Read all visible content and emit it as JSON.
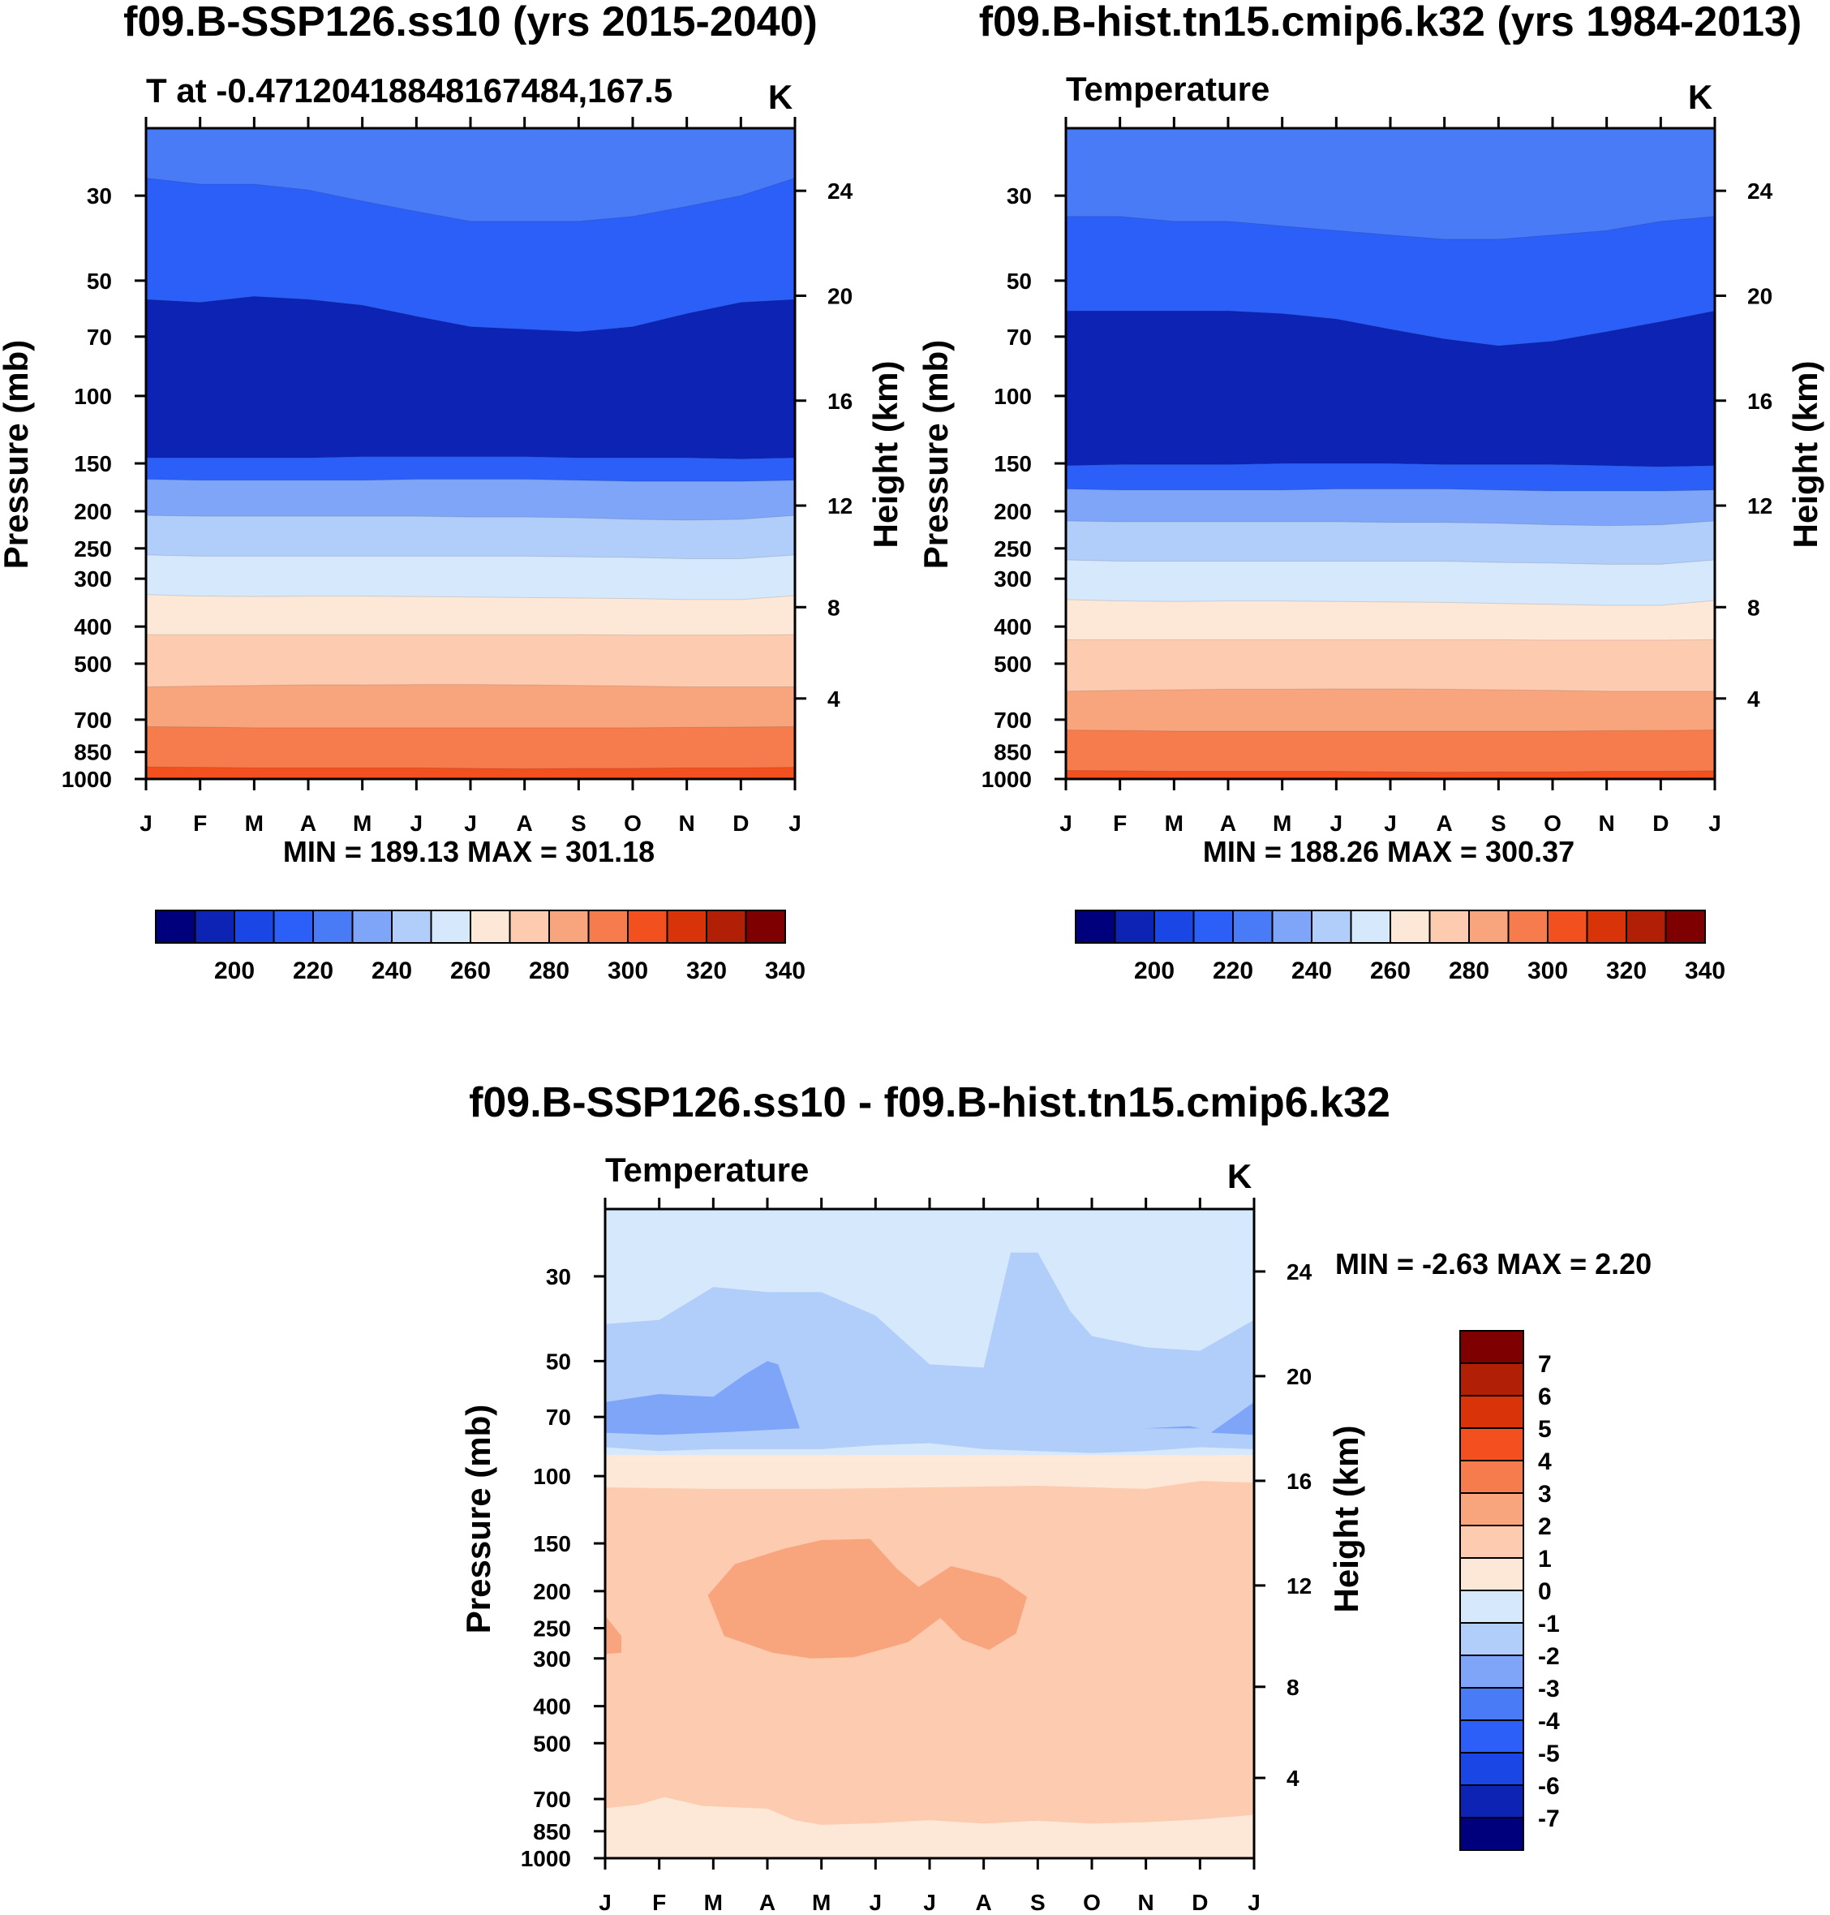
{
  "chart_data": [
    {
      "id": "top-left",
      "type": "contour",
      "title": "f09.B-SSP126.ss10 (yrs 2015-2040)",
      "subtitle": "T at -0.47120418848167484,167.5",
      "units": "K",
      "ylabel": "Pressure (mb)",
      "ylabel_right": "Height (km)",
      "months": [
        "J",
        "F",
        "M",
        "A",
        "M",
        "J",
        "J",
        "A",
        "S",
        "O",
        "N",
        "D",
        "J"
      ],
      "pressure_ticks": [
        30,
        50,
        70,
        100,
        150,
        200,
        250,
        300,
        400,
        500,
        700,
        850,
        1000
      ],
      "height_ticks": [
        4,
        8,
        12,
        16,
        20,
        24
      ],
      "stats": "MIN = 189.13 MAX = 301.18",
      "min": 189.13,
      "max": 301.18,
      "boundaries": [
        {
          "level": 200,
          "pressures": [
            145,
            145,
            145,
            145,
            144,
            144,
            144,
            144,
            145,
            145,
            145,
            146,
            145
          ]
        },
        {
          "level": 210,
          "pressures": [
            56,
            57,
            55,
            56,
            58,
            62,
            66,
            67,
            68,
            66,
            61,
            57,
            56
          ]
        },
        {
          "level": 220,
          "pressures": [
            27,
            28,
            28,
            29,
            31,
            33,
            35,
            35,
            35,
            34,
            32,
            30,
            27
          ]
        },
        {
          "level": 230,
          "pressures": [
            165,
            166,
            166,
            166,
            166,
            165,
            165,
            165,
            166,
            167,
            167,
            167,
            166
          ]
        },
        {
          "level": 240,
          "pressures": [
            205,
            206,
            206,
            206,
            206,
            206,
            207,
            207,
            208,
            210,
            211,
            210,
            205
          ]
        },
        {
          "level": 250,
          "pressures": [
            260,
            262,
            262,
            262,
            262,
            262,
            262,
            262,
            263,
            264,
            266,
            266,
            260
          ]
        },
        {
          "level": 260,
          "pressures": [
            330,
            333,
            334,
            333,
            333,
            334,
            335,
            336,
            337,
            338,
            340,
            340,
            332
          ]
        },
        {
          "level": 270,
          "pressures": [
            420,
            420,
            420,
            420,
            420,
            420,
            420,
            420,
            420,
            421,
            421,
            421,
            420
          ]
        },
        {
          "level": 280,
          "pressures": [
            575,
            572,
            570,
            568,
            568,
            567,
            567,
            568,
            570,
            572,
            575,
            575,
            575
          ]
        },
        {
          "level": 290,
          "pressures": [
            730,
            732,
            735,
            735,
            735,
            735,
            735,
            735,
            735,
            735,
            733,
            732,
            730
          ]
        },
        {
          "level": 300,
          "pressures": [
            930,
            932,
            935,
            935,
            935,
            935,
            938,
            940,
            938,
            938,
            935,
            935,
            932
          ]
        }
      ]
    },
    {
      "id": "top-right",
      "type": "contour",
      "title": "f09.B-hist.tn15.cmip6.k32 (yrs 1984-2013)",
      "subtitle": "Temperature",
      "units": "K",
      "ylabel": "Pressure (mb)",
      "ylabel_right": "Height (km)",
      "months": [
        "J",
        "F",
        "M",
        "A",
        "M",
        "J",
        "J",
        "A",
        "S",
        "O",
        "N",
        "D",
        "J"
      ],
      "pressure_ticks": [
        30,
        50,
        70,
        100,
        150,
        200,
        250,
        300,
        400,
        500,
        700,
        850,
        1000
      ],
      "height_ticks": [
        4,
        8,
        12,
        16,
        20,
        24
      ],
      "stats": "MIN = 188.26 MAX = 300.37",
      "min": 188.26,
      "max": 300.37,
      "boundaries": [
        {
          "level": 200,
          "pressures": [
            152,
            151,
            151,
            151,
            150,
            150,
            150,
            151,
            151,
            151,
            152,
            153,
            152
          ]
        },
        {
          "level": 210,
          "pressures": [
            60,
            60,
            60,
            60,
            61,
            63,
            67,
            71,
            74,
            72,
            68,
            64,
            60
          ]
        },
        {
          "level": 220,
          "pressures": [
            34,
            34,
            35,
            35,
            36,
            37,
            38,
            39,
            39,
            38,
            37,
            35,
            34
          ]
        },
        {
          "level": 230,
          "pressures": [
            175,
            176,
            176,
            176,
            176,
            175,
            175,
            175,
            176,
            177,
            177,
            177,
            176
          ]
        },
        {
          "level": 240,
          "pressures": [
            212,
            213,
            213,
            213,
            213,
            213,
            214,
            214,
            215,
            217,
            218,
            217,
            212
          ]
        },
        {
          "level": 250,
          "pressures": [
            268,
            270,
            270,
            270,
            270,
            270,
            270,
            270,
            272,
            273,
            275,
            275,
            268
          ]
        },
        {
          "level": 260,
          "pressures": [
            340,
            343,
            344,
            343,
            343,
            344,
            345,
            346,
            348,
            350,
            352,
            352,
            342
          ]
        },
        {
          "level": 270,
          "pressures": [
            433,
            433,
            433,
            433,
            433,
            433,
            433,
            433,
            433,
            434,
            434,
            434,
            433
          ]
        },
        {
          "level": 280,
          "pressures": [
            590,
            587,
            585,
            583,
            583,
            582,
            582,
            583,
            585,
            587,
            590,
            590,
            590
          ]
        },
        {
          "level": 290,
          "pressures": [
            745,
            747,
            750,
            750,
            750,
            750,
            750,
            750,
            750,
            750,
            748,
            747,
            745
          ]
        },
        {
          "level": 300,
          "pressures": [
            950,
            952,
            955,
            955,
            955,
            955,
            958,
            960,
            958,
            958,
            955,
            955,
            952
          ]
        }
      ]
    },
    {
      "id": "bottom",
      "type": "contour",
      "title": "f09.B-SSP126.ss10 - f09.B-hist.tn15.cmip6.k32",
      "subtitle": "Temperature",
      "units": "K",
      "ylabel": "Pressure (mb)",
      "ylabel_right": "Height (km)",
      "months": [
        "J",
        "F",
        "M",
        "A",
        "M",
        "J",
        "J",
        "A",
        "S",
        "O",
        "N",
        "D",
        "J"
      ],
      "pressure_ticks": [
        30,
        50,
        70,
        100,
        150,
        200,
        250,
        300,
        400,
        500,
        700,
        850,
        1000
      ],
      "height_ticks": [
        4,
        8,
        12,
        16,
        20,
        24
      ],
      "stats": "MIN =  -2.63 MAX =   2.20",
      "min": -2.63,
      "max": 2.2,
      "regions": [
        {
          "level": 1,
          "points": [
            [
              0,
              107
            ],
            [
              2,
              108
            ],
            [
              4,
              108
            ],
            [
              6,
              107
            ],
            [
              8,
              106
            ],
            [
              10,
              108
            ],
            [
              11,
              103
            ],
            [
              12,
              104
            ],
            [
              12,
              1000
            ],
            [
              0,
              1000
            ]
          ]
        },
        {
          "level": 2,
          "points": [
            [
              1.9,
              205
            ],
            [
              2.4,
              170
            ],
            [
              3.3,
              155
            ],
            [
              4.0,
              147
            ],
            [
              4.9,
              146
            ],
            [
              5.4,
              175
            ],
            [
              5.8,
              195
            ],
            [
              6.4,
              172
            ],
            [
              7.3,
              185
            ],
            [
              7.8,
              207
            ],
            [
              7.6,
              258
            ],
            [
              7.1,
              285
            ],
            [
              6.6,
              268
            ],
            [
              6.2,
              235
            ],
            [
              5.6,
              272
            ],
            [
              4.6,
              298
            ],
            [
              3.8,
              300
            ],
            [
              3.1,
              290
            ],
            [
              2.2,
              262
            ]
          ]
        },
        {
          "level": 2,
          "points": [
            [
              0,
              232
            ],
            [
              0.3,
              262
            ],
            [
              0.3,
              290
            ],
            [
              0,
              292
            ]
          ]
        },
        {
          "level": 0,
          "points": [
            [
              0,
              740
            ],
            [
              0.6,
              725
            ],
            [
              1.1,
              692
            ],
            [
              1.8,
              730
            ],
            [
              3.0,
              742
            ],
            [
              3.5,
              795
            ],
            [
              4.0,
              818
            ],
            [
              5.0,
              810
            ],
            [
              6.0,
              795
            ],
            [
              7.0,
              812
            ],
            [
              8.0,
              798
            ],
            [
              9.0,
              812
            ],
            [
              10.0,
              805
            ],
            [
              11.0,
              792
            ],
            [
              12.0,
              770
            ],
            [
              12,
              1000
            ],
            [
              0,
              1000
            ]
          ]
        },
        {
          "level": -1,
          "points": [
            [
              0,
              40
            ],
            [
              1.0,
              39
            ],
            [
              2.0,
              32
            ],
            [
              3.0,
              33
            ],
            [
              4.0,
              33
            ],
            [
              5.0,
              38
            ],
            [
              6.0,
              51
            ],
            [
              7.0,
              52
            ],
            [
              7.5,
              26
            ],
            [
              8.0,
              26
            ],
            [
              8.6,
              37
            ],
            [
              9.0,
              43
            ],
            [
              10.0,
              46
            ],
            [
              11.0,
              47
            ],
            [
              12.0,
              39
            ],
            [
              12,
              85
            ],
            [
              11,
              84
            ],
            [
              10,
              86
            ],
            [
              9,
              87
            ],
            [
              8,
              86
            ],
            [
              7,
              85
            ],
            [
              6,
              82
            ],
            [
              5,
              83
            ],
            [
              4,
              85
            ],
            [
              3,
              85
            ],
            [
              2,
              85
            ],
            [
              1,
              86
            ],
            [
              0,
              84
            ]
          ]
        },
        {
          "level": -2,
          "points": [
            [
              0,
              64
            ],
            [
              1.0,
              61
            ],
            [
              2.0,
              62
            ],
            [
              2.6,
              54
            ],
            [
              3.0,
              50
            ],
            [
              3.2,
              51
            ],
            [
              3.6,
              75
            ],
            [
              2.0,
              77
            ],
            [
              1.0,
              78
            ],
            [
              0,
              77
            ]
          ]
        },
        {
          "level": -2,
          "points": [
            [
              10,
              75
            ],
            [
              10.8,
              74
            ],
            [
              11.0,
              75
            ]
          ]
        },
        {
          "level": -2,
          "points": [
            [
              11.2,
              77
            ],
            [
              12.0,
              64
            ],
            [
              12.0,
              78
            ]
          ]
        }
      ],
      "colorbar_labels": [
        "7",
        "6",
        "5",
        "4",
        "3",
        "2",
        "1",
        "0",
        "-1",
        "-2",
        "-3",
        "-4",
        "-5",
        "-6",
        "-7"
      ]
    }
  ],
  "palette": [
    "#00007d",
    "#0d23b4",
    "#1b46e6",
    "#2b5ff7",
    "#4a7bf7",
    "#7ea5f7",
    "#b1cdfa",
    "#d6e8fb",
    "#fde8d7",
    "#fdcbb0",
    "#f8a57e",
    "#f77c4d",
    "#f2501e",
    "#d93409",
    "#b01f06",
    "#7f0000"
  ],
  "top_colorbar_labels": [
    "200",
    "220",
    "240",
    "260",
    "280",
    "300",
    "320",
    "340"
  ],
  "bottom_colorbar_colors": [
    "#7f0000",
    "#b01f06",
    "#d93409",
    "#f2501e",
    "#f77c4d",
    "#f8a57e",
    "#fdcbb0",
    "#fde8d7",
    "#d6e8fb",
    "#b1cdfa",
    "#7ea5f7",
    "#4a7bf7",
    "#2b5ff7",
    "#1b46e6",
    "#0d23b4",
    "#00007d"
  ]
}
